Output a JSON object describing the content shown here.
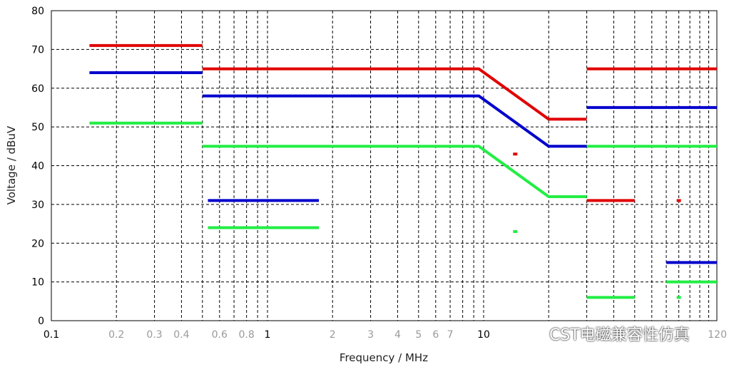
{
  "chart_data": {
    "type": "line",
    "title": "",
    "xlabel": "Frequency / MHz",
    "ylabel": "Voltage / dBuV",
    "x_scale": "log",
    "xlim": [
      0.1,
      120
    ],
    "ylim": [
      0,
      80
    ],
    "grid": true,
    "y_ticks": [
      "0",
      "10",
      "20",
      "30",
      "40",
      "50",
      "60",
      "70",
      "80"
    ],
    "x_ticks": [
      {
        "value": 0.1,
        "label": "0.1",
        "major": true
      },
      {
        "value": 0.2,
        "label": "0.2",
        "major": false
      },
      {
        "value": 0.3,
        "label": "0.3",
        "major": false
      },
      {
        "value": 0.4,
        "label": "0.4",
        "major": false
      },
      {
        "value": 0.6,
        "label": "0.6",
        "major": false
      },
      {
        "value": 0.8,
        "label": "0.8",
        "major": false
      },
      {
        "value": 1,
        "label": "1",
        "major": true
      },
      {
        "value": 2,
        "label": "2",
        "major": false
      },
      {
        "value": 3,
        "label": "3",
        "major": false
      },
      {
        "value": 4,
        "label": "4",
        "major": false
      },
      {
        "value": 5,
        "label": "5",
        "major": false
      },
      {
        "value": 6,
        "label": "6",
        "major": false
      },
      {
        "value": 7,
        "label": "7",
        "major": false
      },
      {
        "value": 10,
        "label": "10",
        "major": true
      },
      {
        "value": 120,
        "label": "120",
        "major": false
      }
    ],
    "series": [
      {
        "color": "#e00000",
        "segments": [
          [
            [
              0.15,
              71
            ],
            [
              0.5,
              71
            ]
          ],
          [
            [
              0.5,
              65
            ],
            [
              9.5,
              65
            ],
            [
              20,
              52
            ],
            [
              30,
              52
            ]
          ],
          [
            [
              30,
              65
            ],
            [
              120,
              65
            ]
          ],
          [
            [
              30,
              31
            ],
            [
              50,
              31
            ]
          ],
          [
            [
              14,
              43
            ]
          ],
          [
            [
              80,
              31
            ]
          ]
        ]
      },
      {
        "color": "#0000cc",
        "segments": [
          [
            [
              0.15,
              64
            ],
            [
              0.5,
              64
            ]
          ],
          [
            [
              0.5,
              58
            ],
            [
              9.5,
              58
            ],
            [
              20,
              45
            ],
            [
              30,
              45
            ]
          ],
          [
            [
              30,
              55
            ],
            [
              120,
              55
            ]
          ],
          [
            [
              0.53,
              31
            ],
            [
              1.73,
              31
            ]
          ],
          [
            [
              70,
              15
            ],
            [
              120,
              15
            ]
          ]
        ]
      },
      {
        "color": "#22ee44",
        "segments": [
          [
            [
              0.15,
              51
            ],
            [
              0.5,
              51
            ]
          ],
          [
            [
              0.5,
              45
            ],
            [
              9.5,
              45
            ],
            [
              20,
              32
            ],
            [
              30,
              32
            ]
          ],
          [
            [
              30,
              45
            ],
            [
              120,
              45
            ]
          ],
          [
            [
              0.53,
              24
            ],
            [
              1.73,
              24
            ]
          ],
          [
            [
              30,
              6
            ],
            [
              50,
              6
            ]
          ],
          [
            [
              70,
              10
            ],
            [
              120,
              10
            ]
          ],
          [
            [
              14,
              23
            ]
          ],
          [
            [
              80,
              6
            ]
          ]
        ]
      }
    ]
  },
  "watermark": {
    "text": "CST电磁兼容性仿真",
    "icon": "wechat-icon"
  }
}
